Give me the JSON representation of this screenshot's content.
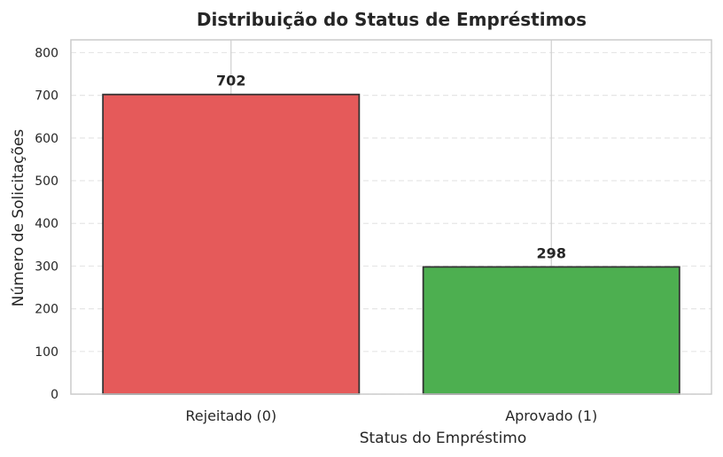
{
  "chart_data": {
    "type": "bar",
    "title": "Distribuição do Status de Empréstimos",
    "xlabel": "Status do Empréstimo",
    "ylabel": "Número de Solicitações",
    "categories": [
      "Rejeitado (0)",
      "Aprovado (1)"
    ],
    "values": [
      702,
      298
    ],
    "data_labels": [
      "702",
      "298"
    ],
    "colors": [
      "#e55a5a",
      "#4daf50"
    ],
    "edge_color": "#333333",
    "ylim": [
      0,
      830
    ],
    "yticks": [
      0,
      100,
      200,
      300,
      400,
      500,
      600,
      700,
      800
    ],
    "ytick_labels": [
      "0",
      "100",
      "200",
      "300",
      "400",
      "500",
      "600",
      "700",
      "800"
    ],
    "grid": "horizontal dashed, vertical solid at categories"
  }
}
